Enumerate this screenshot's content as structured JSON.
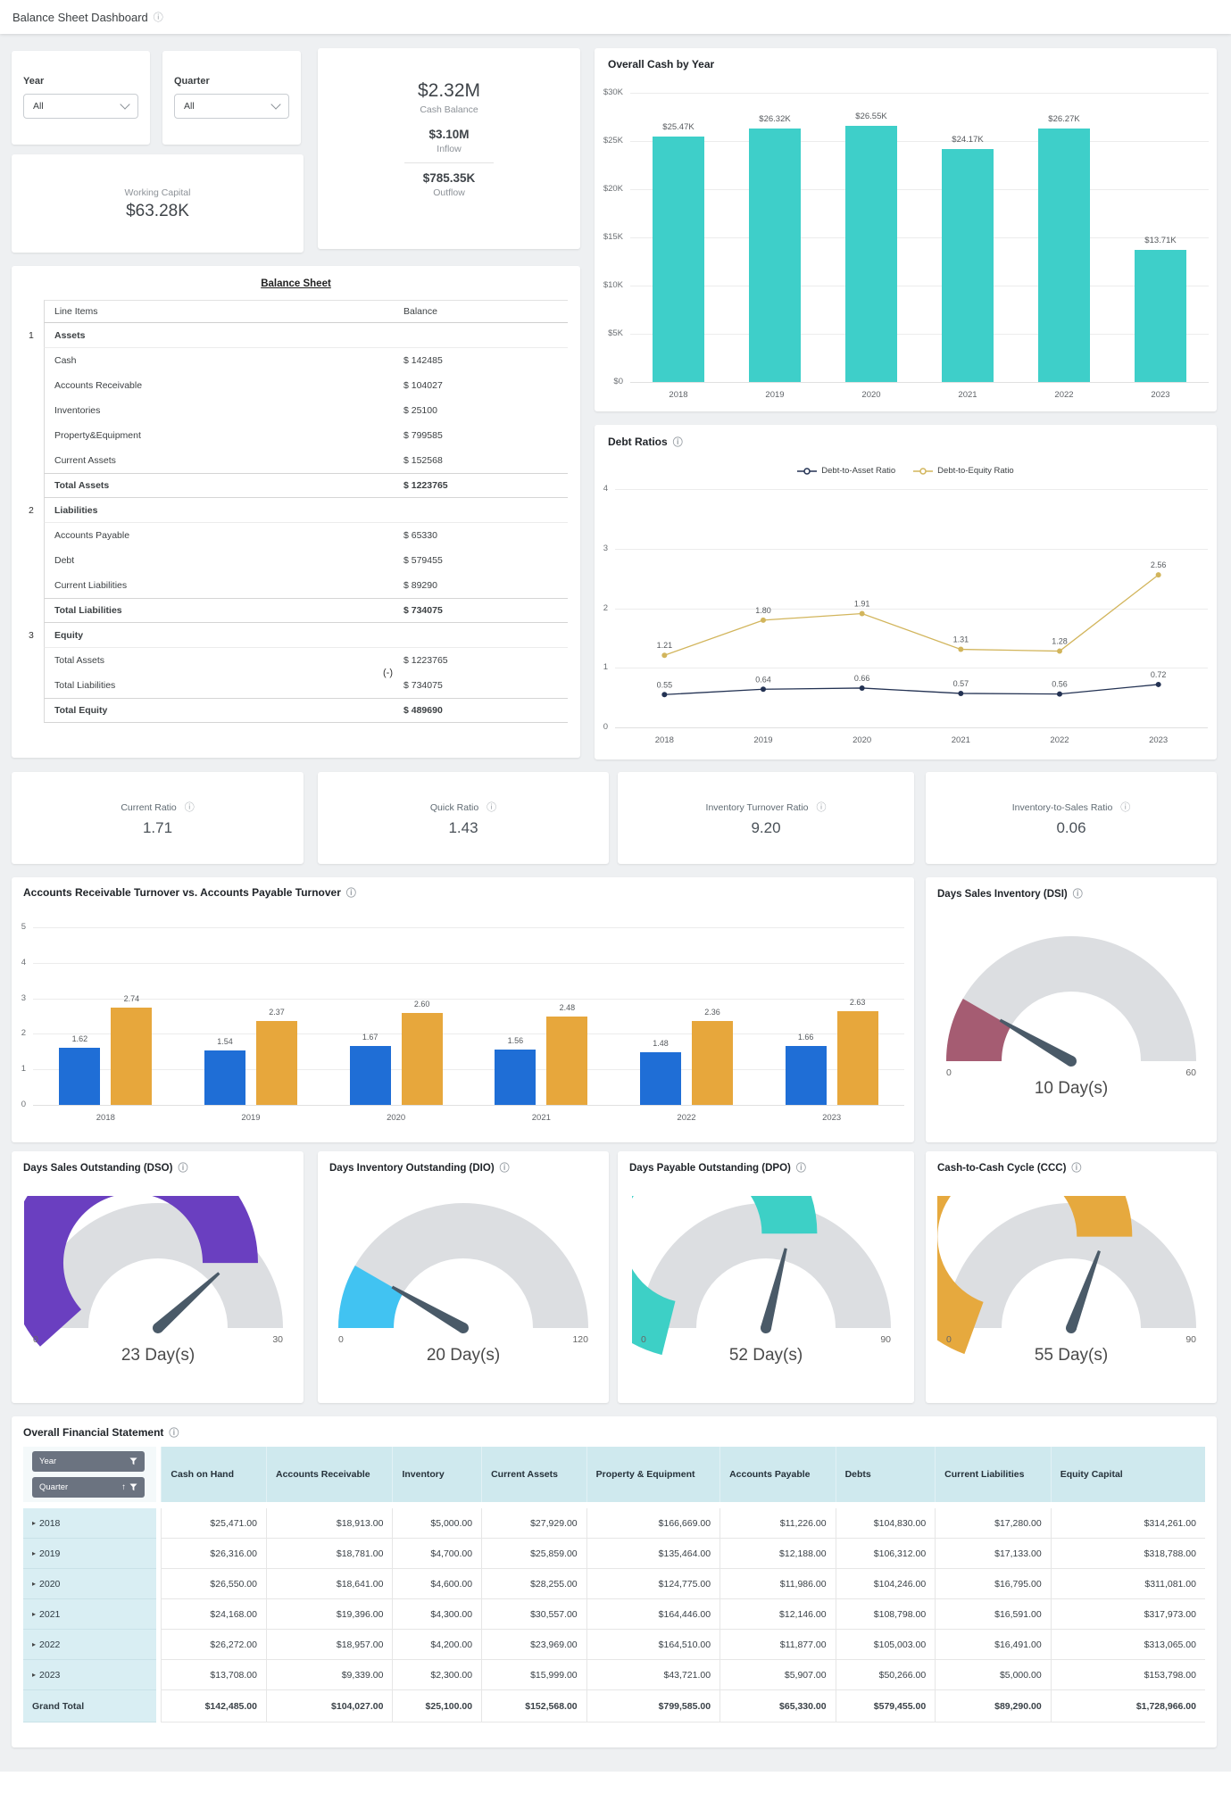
{
  "icons": {
    "info": "ⓘ"
  },
  "header": {
    "title": "Balance Sheet Dashboard"
  },
  "filters": {
    "year": {
      "label": "Year",
      "value": "All"
    },
    "quarter": {
      "label": "Quarter",
      "value": "All"
    }
  },
  "kpis": {
    "cash_balance": {
      "value": "$2.32M",
      "label": "Cash Balance"
    },
    "inflow": {
      "value": "$3.10M",
      "label": "Inflow"
    },
    "outflow": {
      "value": "$785.35K",
      "label": "Outflow"
    },
    "working_capital": {
      "label": "Working Capital",
      "value": "$63.28K"
    }
  },
  "balance_sheet": {
    "title": "Balance Sheet",
    "columns": [
      "Line Items",
      "Balance"
    ],
    "sections": [
      {
        "index": "1",
        "name": "Assets",
        "rows": [
          [
            "Cash",
            "$ 142485"
          ],
          [
            "Accounts Receivable",
            "$ 104027"
          ],
          [
            "Inventories",
            "$ 25100"
          ],
          [
            "Property&Equipment",
            "$ 799585"
          ],
          [
            "Current Assets",
            "$ 152568"
          ]
        ],
        "total": [
          "Total Assets",
          "$ 1223765"
        ]
      },
      {
        "index": "2",
        "name": "Liabilities",
        "rows": [
          [
            "Accounts Payable",
            "$ 65330"
          ],
          [
            "Debt",
            "$ 579455"
          ],
          [
            "Current Liabilities",
            "$ 89290"
          ]
        ],
        "total": [
          "Total Liabilities",
          "$ 734075"
        ]
      },
      {
        "index": "3",
        "name": "Equity",
        "rows": [
          [
            "Total Assets",
            "$ 1223765"
          ],
          [
            "Total Liabilities",
            "$ 734075"
          ]
        ],
        "operator": "(-)",
        "total": [
          "Total Equity",
          "$ 489690"
        ]
      }
    ]
  },
  "ratio_cards": [
    {
      "label": "Current Ratio",
      "value": "1.71"
    },
    {
      "label": "Quick Ratio",
      "value": "1.43"
    },
    {
      "label": "Inventory Turnover Ratio",
      "value": "9.20"
    },
    {
      "label": "Inventory-to-Sales Ratio",
      "value": "0.06"
    }
  ],
  "chart_data": [
    {
      "id": "overall_cash_by_year",
      "type": "bar",
      "title": "Overall Cash by Year",
      "categories": [
        "2018",
        "2019",
        "2020",
        "2021",
        "2022",
        "2023"
      ],
      "values": [
        25.47,
        26.32,
        26.55,
        24.17,
        26.27,
        13.71
      ],
      "value_labels": [
        "$25.47K",
        "$26.32K",
        "$26.55K",
        "$24.17K",
        "$26.27K",
        "$13.71K"
      ],
      "bar_color": "#3ecfc9",
      "ylim": [
        0,
        30
      ],
      "yticks": [
        {
          "v": 0,
          "t": "$0"
        },
        {
          "v": 5,
          "t": "$5K"
        },
        {
          "v": 10,
          "t": "$10K"
        },
        {
          "v": 15,
          "t": "$15K"
        },
        {
          "v": 20,
          "t": "$20K"
        },
        {
          "v": 25,
          "t": "$25K"
        },
        {
          "v": 30,
          "t": "$30K"
        }
      ],
      "grid": true,
      "legend": false
    },
    {
      "id": "debt_ratios",
      "type": "line",
      "title": "Debt Ratios",
      "categories": [
        "2018",
        "2019",
        "2020",
        "2021",
        "2022",
        "2023"
      ],
      "series": [
        {
          "name": "Debt-to-Asset Ratio",
          "color": "#233253",
          "values": [
            0.55,
            0.64,
            0.66,
            0.57,
            0.56,
            0.72
          ],
          "labels": [
            "0.55",
            "0.64",
            "0.66",
            "0.57",
            "0.56",
            "0.72"
          ]
        },
        {
          "name": "Debt-to-Equity Ratio",
          "color": "#d2b55c",
          "values": [
            1.21,
            1.8,
            1.91,
            1.31,
            1.28,
            2.56
          ],
          "labels": [
            "1.21",
            "1.80",
            "1.91",
            "1.31",
            "1.28",
            "2.56"
          ]
        }
      ],
      "ylim": [
        0,
        4
      ],
      "yticks": [
        {
          "v": 0,
          "t": "0"
        },
        {
          "v": 1,
          "t": "1"
        },
        {
          "v": 2,
          "t": "2"
        },
        {
          "v": 3,
          "t": "3"
        },
        {
          "v": 4,
          "t": "4"
        }
      ],
      "grid": true,
      "legend_position": "top"
    },
    {
      "id": "ar_ap_turnover",
      "type": "bar",
      "title": "Accounts Receivable Turnover vs. Accounts Payable Turnover",
      "categories": [
        "2018",
        "2019",
        "2020",
        "2021",
        "2022",
        "2023"
      ],
      "series": [
        {
          "name": "Accounts Receivable Turnover",
          "color": "#1f6ed6",
          "values": [
            1.62,
            1.54,
            1.67,
            1.56,
            1.48,
            1.66
          ],
          "labels": [
            "1.62",
            "1.54",
            "1.67",
            "1.56",
            "1.48",
            "1.66"
          ]
        },
        {
          "name": "Accounts Payable Turnover",
          "color": "#e7a73c",
          "values": [
            2.74,
            2.37,
            2.6,
            2.48,
            2.36,
            2.63
          ],
          "labels": [
            "2.74",
            "2.37",
            "2.60",
            "2.48",
            "2.36",
            "2.63"
          ]
        }
      ],
      "ylim": [
        0,
        5
      ],
      "yticks": [
        {
          "v": 0,
          "t": "0"
        },
        {
          "v": 1,
          "t": "1"
        },
        {
          "v": 2,
          "t": "2"
        },
        {
          "v": 3,
          "t": "3"
        },
        {
          "v": 4,
          "t": "4"
        },
        {
          "v": 5,
          "t": "5"
        }
      ],
      "grid": true,
      "legend": false
    },
    {
      "id": "dsi",
      "type": "gauge",
      "title": "Days Sales Inventory (DSI)",
      "min": 0,
      "max": 60,
      "value": 10,
      "value_label": "10 Day(s)",
      "color": "#a55c72"
    },
    {
      "id": "dso",
      "type": "gauge",
      "title": "Days Sales Outstanding (DSO)",
      "min": 0,
      "max": 30,
      "value": 23,
      "value_label": "23 Day(s)",
      "color": "#6a3fc0"
    },
    {
      "id": "dio",
      "type": "gauge",
      "title": "Days Inventory Outstanding (DIO)",
      "min": 0,
      "max": 120,
      "value": 20,
      "value_label": "20 Day(s)",
      "color": "#41c3f2"
    },
    {
      "id": "dpo",
      "type": "gauge",
      "title": "Days Payable Outstanding (DPO)",
      "min": 0,
      "max": 90,
      "value": 52,
      "value_label": "52 Day(s)",
      "color": "#3dd0c6"
    },
    {
      "id": "ccc",
      "type": "gauge",
      "title": "Cash-to-Cash Cycle (CCC)",
      "min": 0,
      "max": 90,
      "value": 55,
      "value_label": "55 Day(s)",
      "color": "#e6a93e"
    }
  ],
  "financial_statement": {
    "title": "Overall Financial Statement",
    "row_filters": {
      "year": "Year",
      "quarter": "Quarter",
      "sort_icon": "↑"
    },
    "columns": [
      "Cash on Hand",
      "Accounts Receivable",
      "Inventory",
      "Current Assets",
      "Property & Equipment",
      "Accounts Payable",
      "Debts",
      "Current Liabilities",
      "Equity Capital"
    ],
    "rows": [
      {
        "year": "2018",
        "values": [
          "$25,471.00",
          "$18,913.00",
          "$5,000.00",
          "$27,929.00",
          "$166,669.00",
          "$11,226.00",
          "$104,830.00",
          "$17,280.00",
          "$314,261.00"
        ]
      },
      {
        "year": "2019",
        "values": [
          "$26,316.00",
          "$18,781.00",
          "$4,700.00",
          "$25,859.00",
          "$135,464.00",
          "$12,188.00",
          "$106,312.00",
          "$17,133.00",
          "$318,788.00"
        ]
      },
      {
        "year": "2020",
        "values": [
          "$26,550.00",
          "$18,641.00",
          "$4,600.00",
          "$28,255.00",
          "$124,775.00",
          "$11,986.00",
          "$104,246.00",
          "$16,795.00",
          "$311,081.00"
        ]
      },
      {
        "year": "2021",
        "values": [
          "$24,168.00",
          "$19,396.00",
          "$4,300.00",
          "$30,557.00",
          "$164,446.00",
          "$12,146.00",
          "$108,798.00",
          "$16,591.00",
          "$317,973.00"
        ]
      },
      {
        "year": "2022",
        "values": [
          "$26,272.00",
          "$18,957.00",
          "$4,200.00",
          "$23,969.00",
          "$164,510.00",
          "$11,877.00",
          "$105,003.00",
          "$16,491.00",
          "$313,065.00"
        ]
      },
      {
        "year": "2023",
        "values": [
          "$13,708.00",
          "$9,339.00",
          "$2,300.00",
          "$15,999.00",
          "$43,721.00",
          "$5,907.00",
          "$50,266.00",
          "$5,000.00",
          "$153,798.00"
        ]
      }
    ],
    "grand_total": {
      "label": "Grand Total",
      "values": [
        "$142,485.00",
        "$104,027.00",
        "$25,100.00",
        "$152,568.00",
        "$799,585.00",
        "$65,330.00",
        "$579,455.00",
        "$89,290.00",
        "$1,728,966.00"
      ]
    }
  }
}
